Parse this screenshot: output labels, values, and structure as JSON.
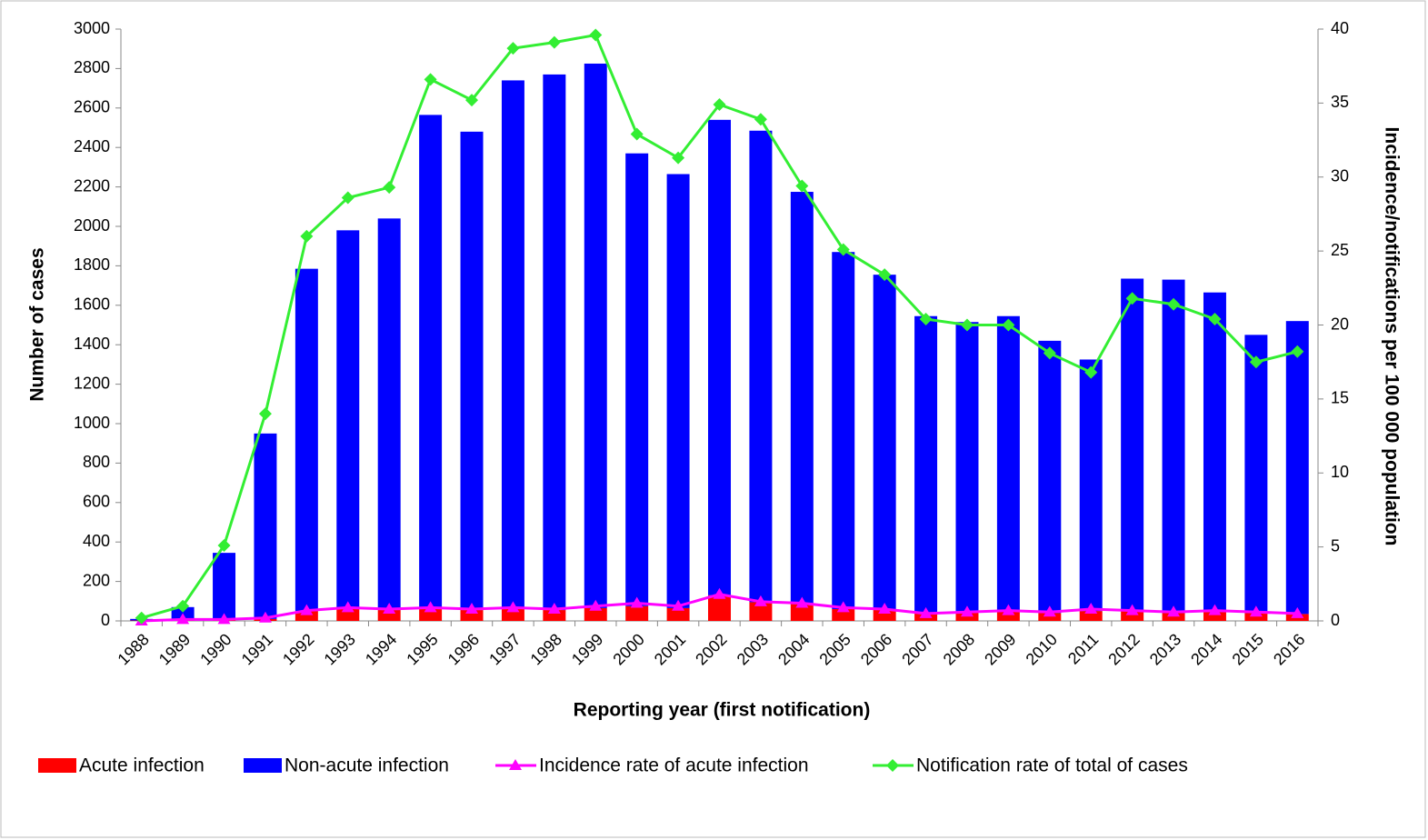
{
  "chart_data": {
    "type": "bar",
    "x_label": "Reporting year (first notification)",
    "y_label": "Number of cases",
    "y2_label": "Incidence/notifications per 100 000  population",
    "categories": [
      "1988",
      "1989",
      "1990",
      "1991",
      "1992",
      "1993",
      "1994",
      "1995",
      "1996",
      "1997",
      "1998",
      "1999",
      "2000",
      "2001",
      "2002",
      "2003",
      "2004",
      "2005",
      "2006",
      "2007",
      "2008",
      "2009",
      "2010",
      "2011",
      "2012",
      "2013",
      "2014",
      "2015",
      "2016"
    ],
    "series": [
      {
        "name": "Acute infection",
        "color": "#ff0000",
        "kind": "bar",
        "values": [
          2,
          5,
          5,
          10,
          50,
          60,
          55,
          60,
          55,
          60,
          55,
          65,
          75,
          65,
          130,
          95,
          85,
          60,
          55,
          40,
          45,
          50,
          40,
          50,
          50,
          40,
          45,
          40,
          35
        ]
      },
      {
        "name": "Non-acute infection",
        "color": "#0000ff",
        "kind": "bar",
        "values": [
          8,
          65,
          340,
          940,
          1735,
          1920,
          1985,
          2505,
          2425,
          2680,
          2715,
          2760,
          2295,
          2200,
          2410,
          2390,
          2090,
          1810,
          1700,
          1505,
          1470,
          1495,
          1380,
          1275,
          1685,
          1690,
          1620,
          1410,
          1485
        ]
      },
      {
        "name": "Incidence rate of acute infection",
        "color": "#ff00ff",
        "kind": "line",
        "marker": "triangle",
        "axis": "y2",
        "values": [
          0,
          0.1,
          0.1,
          0.2,
          0.7,
          0.9,
          0.8,
          0.9,
          0.8,
          0.9,
          0.8,
          1.0,
          1.2,
          1.0,
          1.8,
          1.3,
          1.2,
          0.9,
          0.8,
          0.5,
          0.6,
          0.7,
          0.6,
          0.8,
          0.7,
          0.6,
          0.7,
          0.6,
          0.5
        ]
      },
      {
        "name": "Notification rate of total of cases",
        "color": "#33ee33",
        "kind": "line",
        "marker": "diamond",
        "axis": "y2",
        "values": [
          0.2,
          1.0,
          5.1,
          14.0,
          26.0,
          28.6,
          29.3,
          36.6,
          35.2,
          38.7,
          39.1,
          39.6,
          32.9,
          31.3,
          34.9,
          33.9,
          29.4,
          25.1,
          23.4,
          20.4,
          20.0,
          20.0,
          18.1,
          16.8,
          21.8,
          21.4,
          20.4,
          17.5,
          18.2
        ]
      }
    ],
    "stacked": true,
    "ylim": [
      0,
      3000
    ],
    "yticks": [
      0,
      200,
      400,
      600,
      800,
      1000,
      1200,
      1400,
      1600,
      1800,
      2000,
      2200,
      2400,
      2600,
      2800,
      3000
    ],
    "y2lim": [
      0,
      40
    ],
    "y2ticks": [
      0,
      5,
      10,
      15,
      20,
      25,
      30,
      35,
      40
    ],
    "legend": "bottom"
  }
}
